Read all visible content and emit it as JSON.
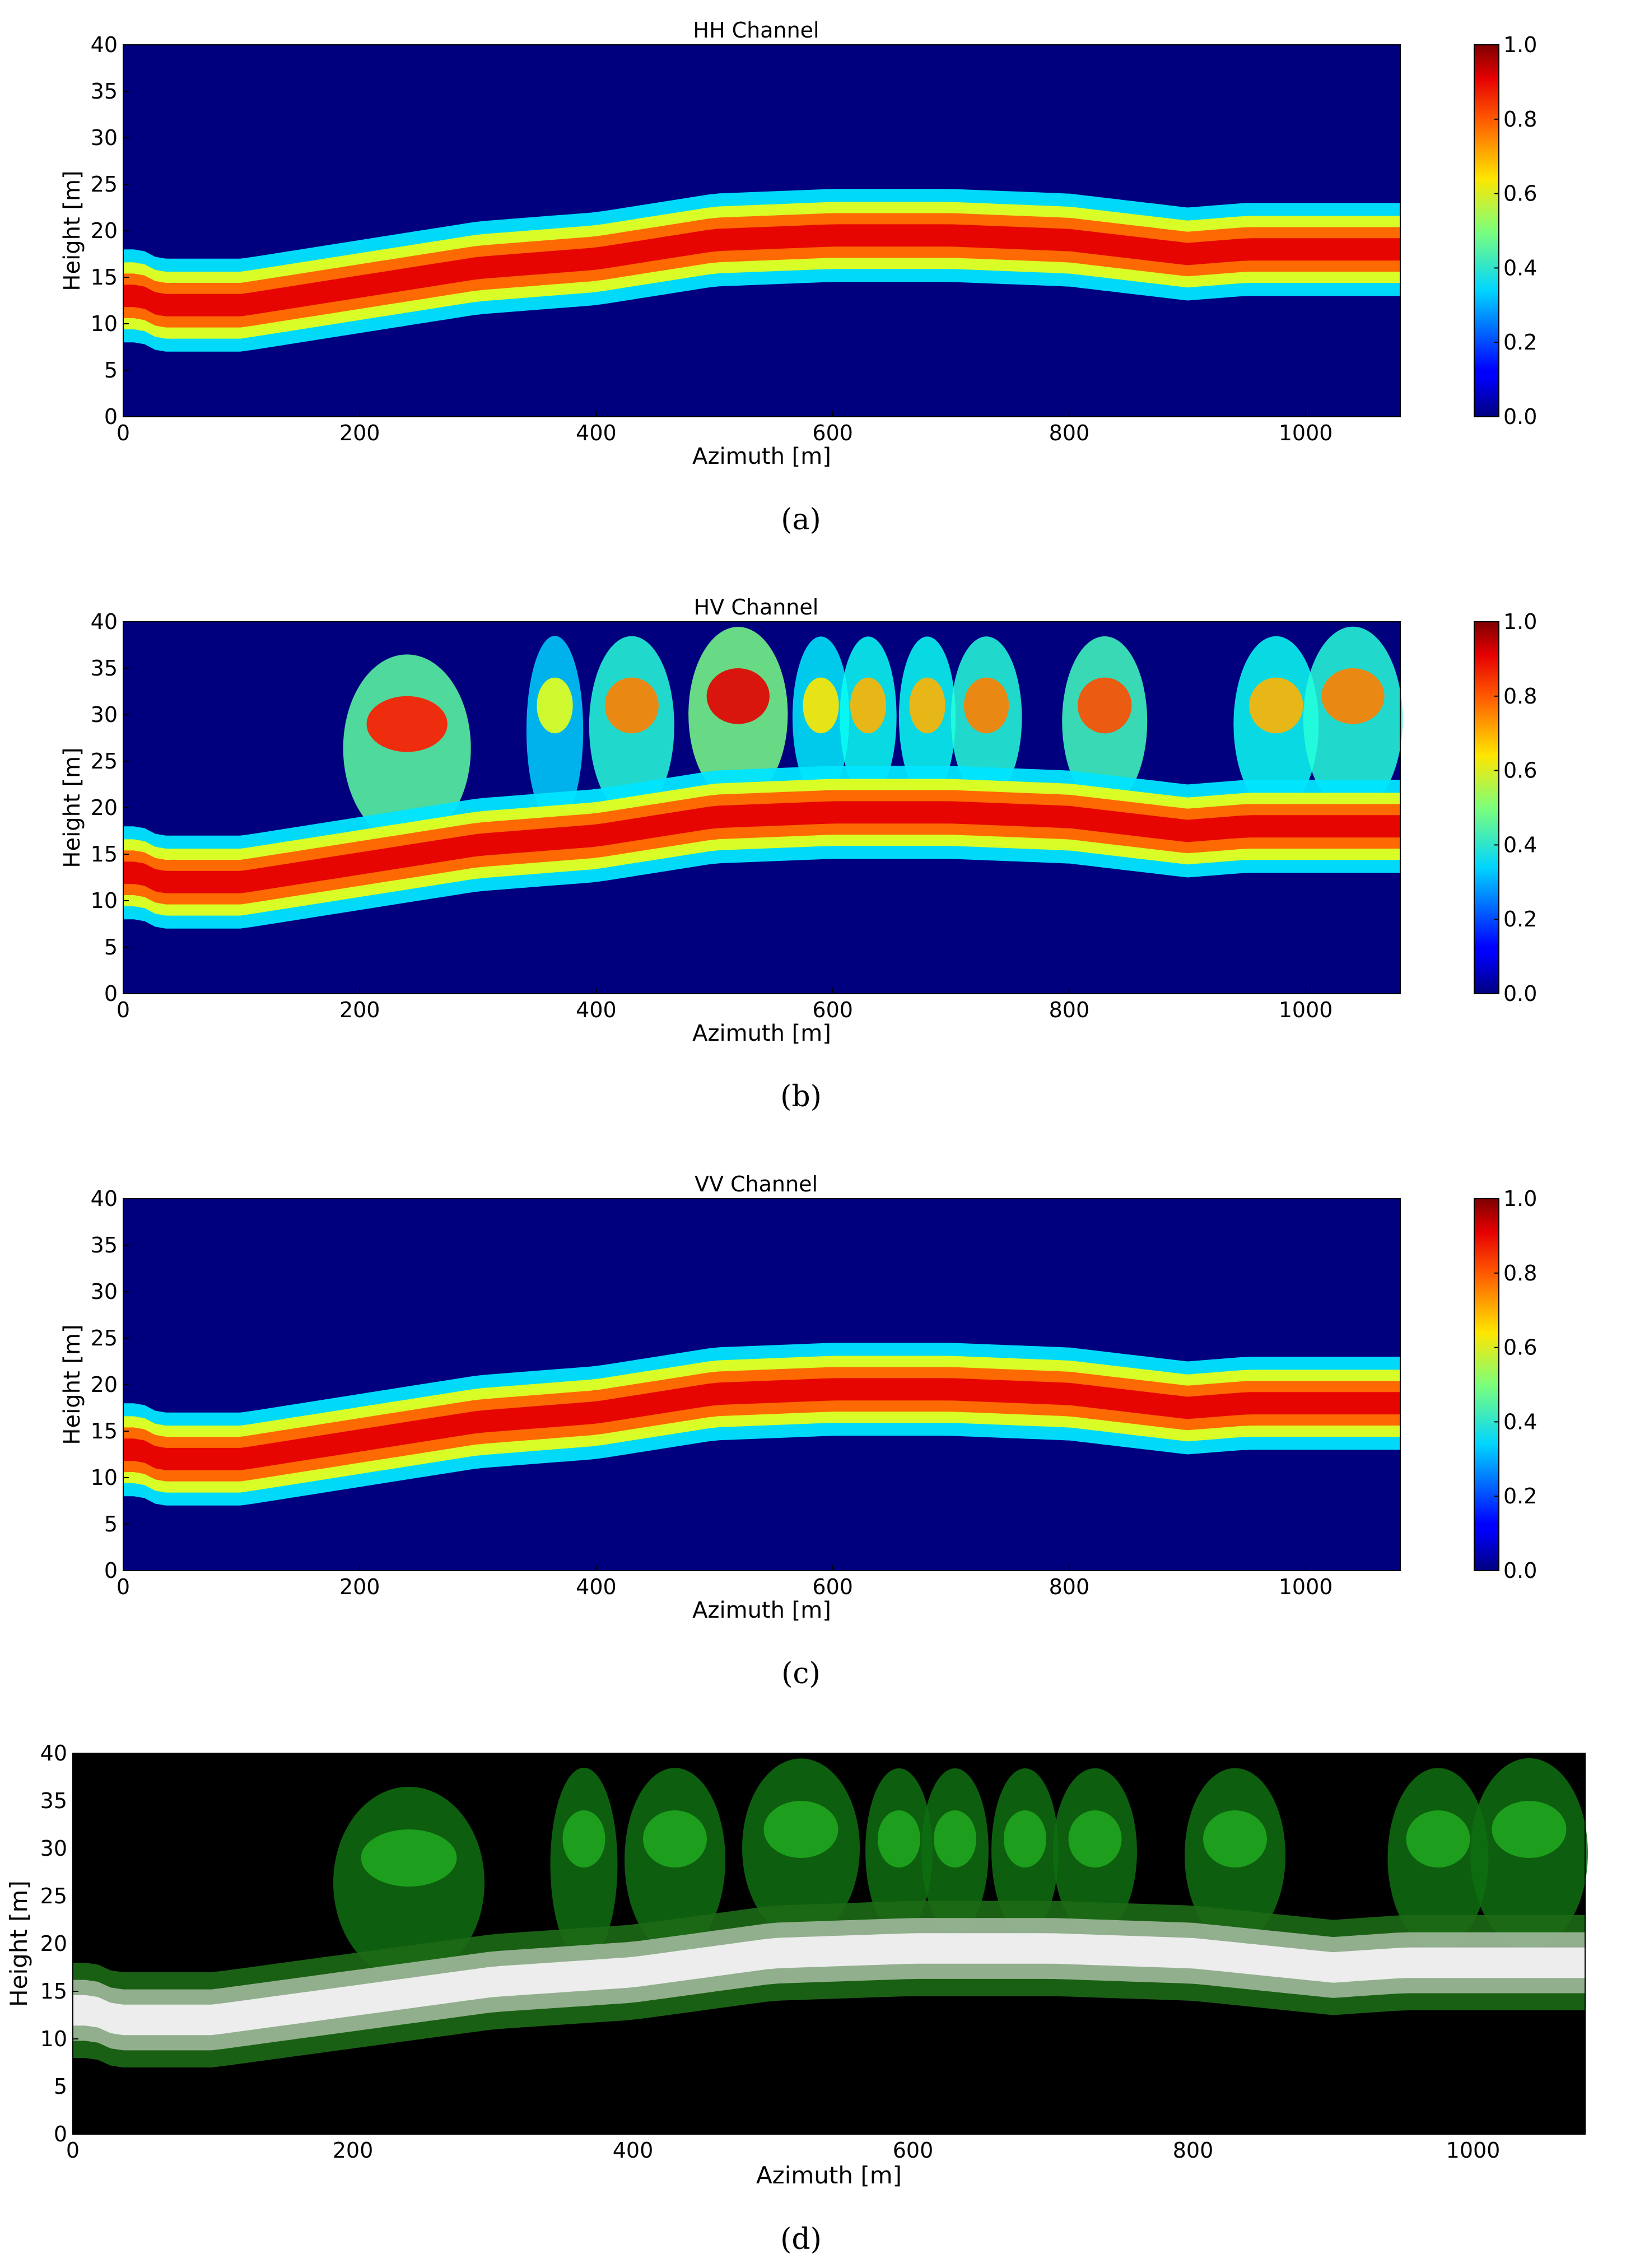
{
  "chart_data": [
    {
      "type": "heatmap",
      "title": "HH Channel",
      "xlabel": "Azimuth [m]",
      "ylabel": "Height [m]",
      "xlim": [
        0,
        1080
      ],
      "ylim": [
        0,
        40
      ],
      "xticks": [
        "0",
        "200",
        "400",
        "600",
        "800",
        "1000"
      ],
      "yticks": [
        "0",
        "5",
        "10",
        "15",
        "20",
        "25",
        "30",
        "35",
        "40"
      ],
      "colorbar": {
        "min": 0.0,
        "max": 1.0,
        "ticks": [
          "0.0",
          "0.2",
          "0.4",
          "0.6",
          "0.8",
          "1.0"
        ],
        "colormap": "jet"
      },
      "caption": "(a)",
      "ground_height_profile": {
        "azimuth": [
          0,
          15,
          30,
          100,
          200,
          300,
          400,
          500,
          600,
          700,
          800,
          900,
          950,
          1000,
          1080
        ],
        "height": [
          13,
          13,
          12,
          12,
          14,
          16,
          17,
          19,
          19.5,
          19.5,
          19,
          17.5,
          18,
          18,
          18
        ]
      },
      "canopy_features": []
    },
    {
      "type": "heatmap",
      "title": "HV Channel",
      "xlabel": "Azimuth [m]",
      "ylabel": "Height [m]",
      "xlim": [
        0,
        1080
      ],
      "ylim": [
        0,
        40
      ],
      "xticks": [
        "0",
        "200",
        "400",
        "600",
        "800",
        "1000"
      ],
      "yticks": [
        "0",
        "5",
        "10",
        "15",
        "20",
        "25",
        "30",
        "35",
        "40"
      ],
      "colorbar": {
        "min": 0.0,
        "max": 1.0,
        "ticks": [
          "0.0",
          "0.2",
          "0.4",
          "0.6",
          "0.8",
          "1.0"
        ],
        "colormap": "jet"
      },
      "caption": "(b)",
      "ground_height_profile": {
        "azimuth": [
          0,
          15,
          30,
          100,
          200,
          300,
          400,
          500,
          600,
          700,
          800,
          900,
          950,
          1000,
          1080
        ],
        "height": [
          13,
          13,
          12,
          12,
          14,
          16,
          17,
          19,
          19.5,
          19.5,
          19,
          17.5,
          18,
          18,
          18
        ]
      },
      "canopy_features": [
        {
          "center": 240,
          "width": 90,
          "height": 30,
          "value": 0.85
        },
        {
          "center": 365,
          "width": 40,
          "height": 32,
          "value": 0.6
        },
        {
          "center": 430,
          "width": 60,
          "height": 32,
          "value": 0.75
        },
        {
          "center": 520,
          "width": 70,
          "height": 33,
          "value": 0.9
        },
        {
          "center": 590,
          "width": 40,
          "height": 32,
          "value": 0.65
        },
        {
          "center": 630,
          "width": 40,
          "height": 32,
          "value": 0.7
        },
        {
          "center": 680,
          "width": 40,
          "height": 32,
          "value": 0.7
        },
        {
          "center": 730,
          "width": 50,
          "height": 32,
          "value": 0.75
        },
        {
          "center": 830,
          "width": 60,
          "height": 32,
          "value": 0.8
        },
        {
          "center": 975,
          "width": 60,
          "height": 32,
          "value": 0.7
        },
        {
          "center": 1040,
          "width": 70,
          "height": 33,
          "value": 0.75
        }
      ]
    },
    {
      "type": "heatmap",
      "title": "VV Channel",
      "xlabel": "Azimuth [m]",
      "ylabel": "Height [m]",
      "xlim": [
        0,
        1080
      ],
      "ylim": [
        0,
        40
      ],
      "xticks": [
        "0",
        "200",
        "400",
        "600",
        "800",
        "1000"
      ],
      "yticks": [
        "0",
        "5",
        "10",
        "15",
        "20",
        "25",
        "30",
        "35",
        "40"
      ],
      "colorbar": {
        "min": 0.0,
        "max": 1.0,
        "ticks": [
          "0.0",
          "0.2",
          "0.4",
          "0.6",
          "0.8",
          "1.0"
        ],
        "colormap": "jet"
      },
      "caption": "(c)",
      "ground_height_profile": {
        "azimuth": [
          0,
          15,
          30,
          100,
          200,
          300,
          400,
          500,
          600,
          700,
          800,
          900,
          950,
          1000,
          1080
        ],
        "height": [
          13,
          13,
          12,
          12,
          14,
          16,
          17,
          19,
          19.5,
          19.5,
          19,
          17.5,
          18,
          18,
          18
        ]
      },
      "canopy_features": []
    },
    {
      "type": "heatmap",
      "title": "",
      "xlabel": "Azimuth [m]",
      "ylabel": "Height [m]",
      "xlim": [
        0,
        1080
      ],
      "ylim": [
        0,
        40
      ],
      "xticks": [
        "0",
        "200",
        "400",
        "600",
        "800",
        "1000"
      ],
      "yticks": [
        "0",
        "5",
        "10",
        "15",
        "20",
        "25",
        "30",
        "35",
        "40"
      ],
      "colormap": "rgb-composite",
      "caption": "(d)",
      "ground_height_profile": {
        "azimuth": [
          0,
          15,
          30,
          100,
          200,
          300,
          400,
          500,
          600,
          700,
          800,
          900,
          950,
          1000,
          1080
        ],
        "height": [
          13,
          13,
          12,
          12,
          14,
          16,
          17,
          19,
          19.5,
          19.5,
          19,
          17.5,
          18,
          18,
          18
        ]
      },
      "canopy_features": [
        {
          "center": 240,
          "width": 90,
          "height": 30,
          "value": 0.85
        },
        {
          "center": 365,
          "width": 40,
          "height": 32,
          "value": 0.6
        },
        {
          "center": 430,
          "width": 60,
          "height": 32,
          "value": 0.75
        },
        {
          "center": 520,
          "width": 70,
          "height": 33,
          "value": 0.9
        },
        {
          "center": 590,
          "width": 40,
          "height": 32,
          "value": 0.65
        },
        {
          "center": 630,
          "width": 40,
          "height": 32,
          "value": 0.7
        },
        {
          "center": 680,
          "width": 40,
          "height": 32,
          "value": 0.7
        },
        {
          "center": 730,
          "width": 50,
          "height": 32,
          "value": 0.75
        },
        {
          "center": 830,
          "width": 60,
          "height": 32,
          "value": 0.8
        },
        {
          "center": 975,
          "width": 60,
          "height": 32,
          "value": 0.7
        },
        {
          "center": 1040,
          "width": 70,
          "height": 33,
          "value": 0.75
        }
      ]
    }
  ]
}
